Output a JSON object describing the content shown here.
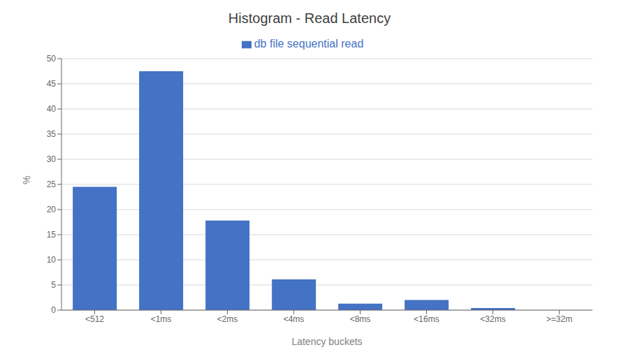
{
  "chart_data": {
    "type": "bar",
    "title": "Histogram - Read Latency",
    "xlabel": "Latency buckets",
    "ylabel": "%",
    "categories": [
      "<512",
      "<1ms",
      "<2ms",
      "<4ms",
      "<8ms",
      "<16ms",
      "<32ms",
      ">=32m"
    ],
    "series": [
      {
        "name": "db file sequential read",
        "color": "#4472C4",
        "values": [
          24.5,
          47.5,
          17.8,
          6.1,
          1.3,
          2.0,
          0.4,
          0.0
        ]
      }
    ],
    "ylim": [
      0,
      50
    ],
    "yticks": [
      0,
      5,
      10,
      15,
      20,
      25,
      30,
      35,
      40,
      45,
      50
    ],
    "grid": true,
    "legend": "top"
  }
}
